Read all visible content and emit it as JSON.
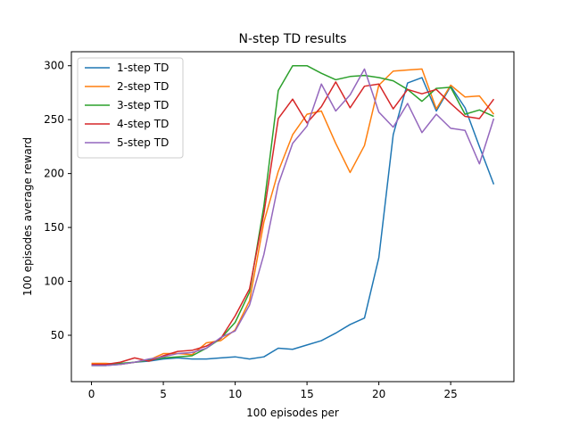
{
  "chart_data": {
    "type": "line",
    "title": "N-step TD results",
    "xlabel": "100 episodes per",
    "ylabel": "100 episodes average reward",
    "xlim": [
      -1.4,
      29.4
    ],
    "ylim": [
      7,
      313
    ],
    "xticks": [
      0,
      5,
      10,
      15,
      20,
      25
    ],
    "yticks": [
      50,
      100,
      150,
      200,
      250,
      300
    ],
    "grid": false,
    "legend_position": "top-left",
    "x": [
      0,
      1,
      2,
      3,
      4,
      5,
      6,
      7,
      8,
      9,
      10,
      11,
      12,
      13,
      14,
      15,
      16,
      17,
      18,
      19,
      20,
      21,
      22,
      23,
      24,
      25,
      26,
      27,
      28
    ],
    "series": [
      {
        "name": "1-step TD",
        "color": "#1f77b4",
        "values": [
          22,
          22,
          23,
          25,
          26,
          28,
          29,
          28,
          28,
          29,
          30,
          28,
          30,
          38,
          37,
          41,
          45,
          52,
          60,
          66,
          122,
          236,
          284,
          289,
          258,
          281,
          261,
          225,
          190
        ]
      },
      {
        "name": "2-step TD",
        "color": "#ff7f0e",
        "values": [
          24,
          24,
          23,
          25,
          27,
          33,
          33,
          32,
          43,
          45,
          55,
          82,
          155,
          202,
          236,
          255,
          258,
          228,
          201,
          226,
          282,
          295,
          296,
          297,
          260,
          282,
          271,
          272,
          255
        ]
      },
      {
        "name": "3-step TD",
        "color": "#2ca02c",
        "values": [
          22,
          22,
          24,
          25,
          27,
          29,
          30,
          31,
          38,
          47,
          62,
          90,
          170,
          277,
          300,
          300,
          293,
          287,
          290,
          291,
          289,
          286,
          278,
          267,
          279,
          280,
          255,
          259,
          253
        ]
      },
      {
        "name": "4-step TD",
        "color": "#d62728",
        "values": [
          23,
          23,
          25,
          29,
          26,
          31,
          35,
          36,
          40,
          47,
          68,
          93,
          163,
          251,
          269,
          247,
          262,
          285,
          261,
          281,
          283,
          260,
          278,
          274,
          278,
          265,
          253,
          251,
          269
        ]
      },
      {
        "name": "5-step TD",
        "color": "#9467bd",
        "values": [
          22,
          22,
          23,
          25,
          28,
          30,
          33,
          34,
          38,
          48,
          54,
          78,
          125,
          190,
          228,
          244,
          283,
          258,
          273,
          297,
          257,
          243,
          265,
          238,
          255,
          242,
          240,
          209,
          251
        ]
      }
    ]
  }
}
